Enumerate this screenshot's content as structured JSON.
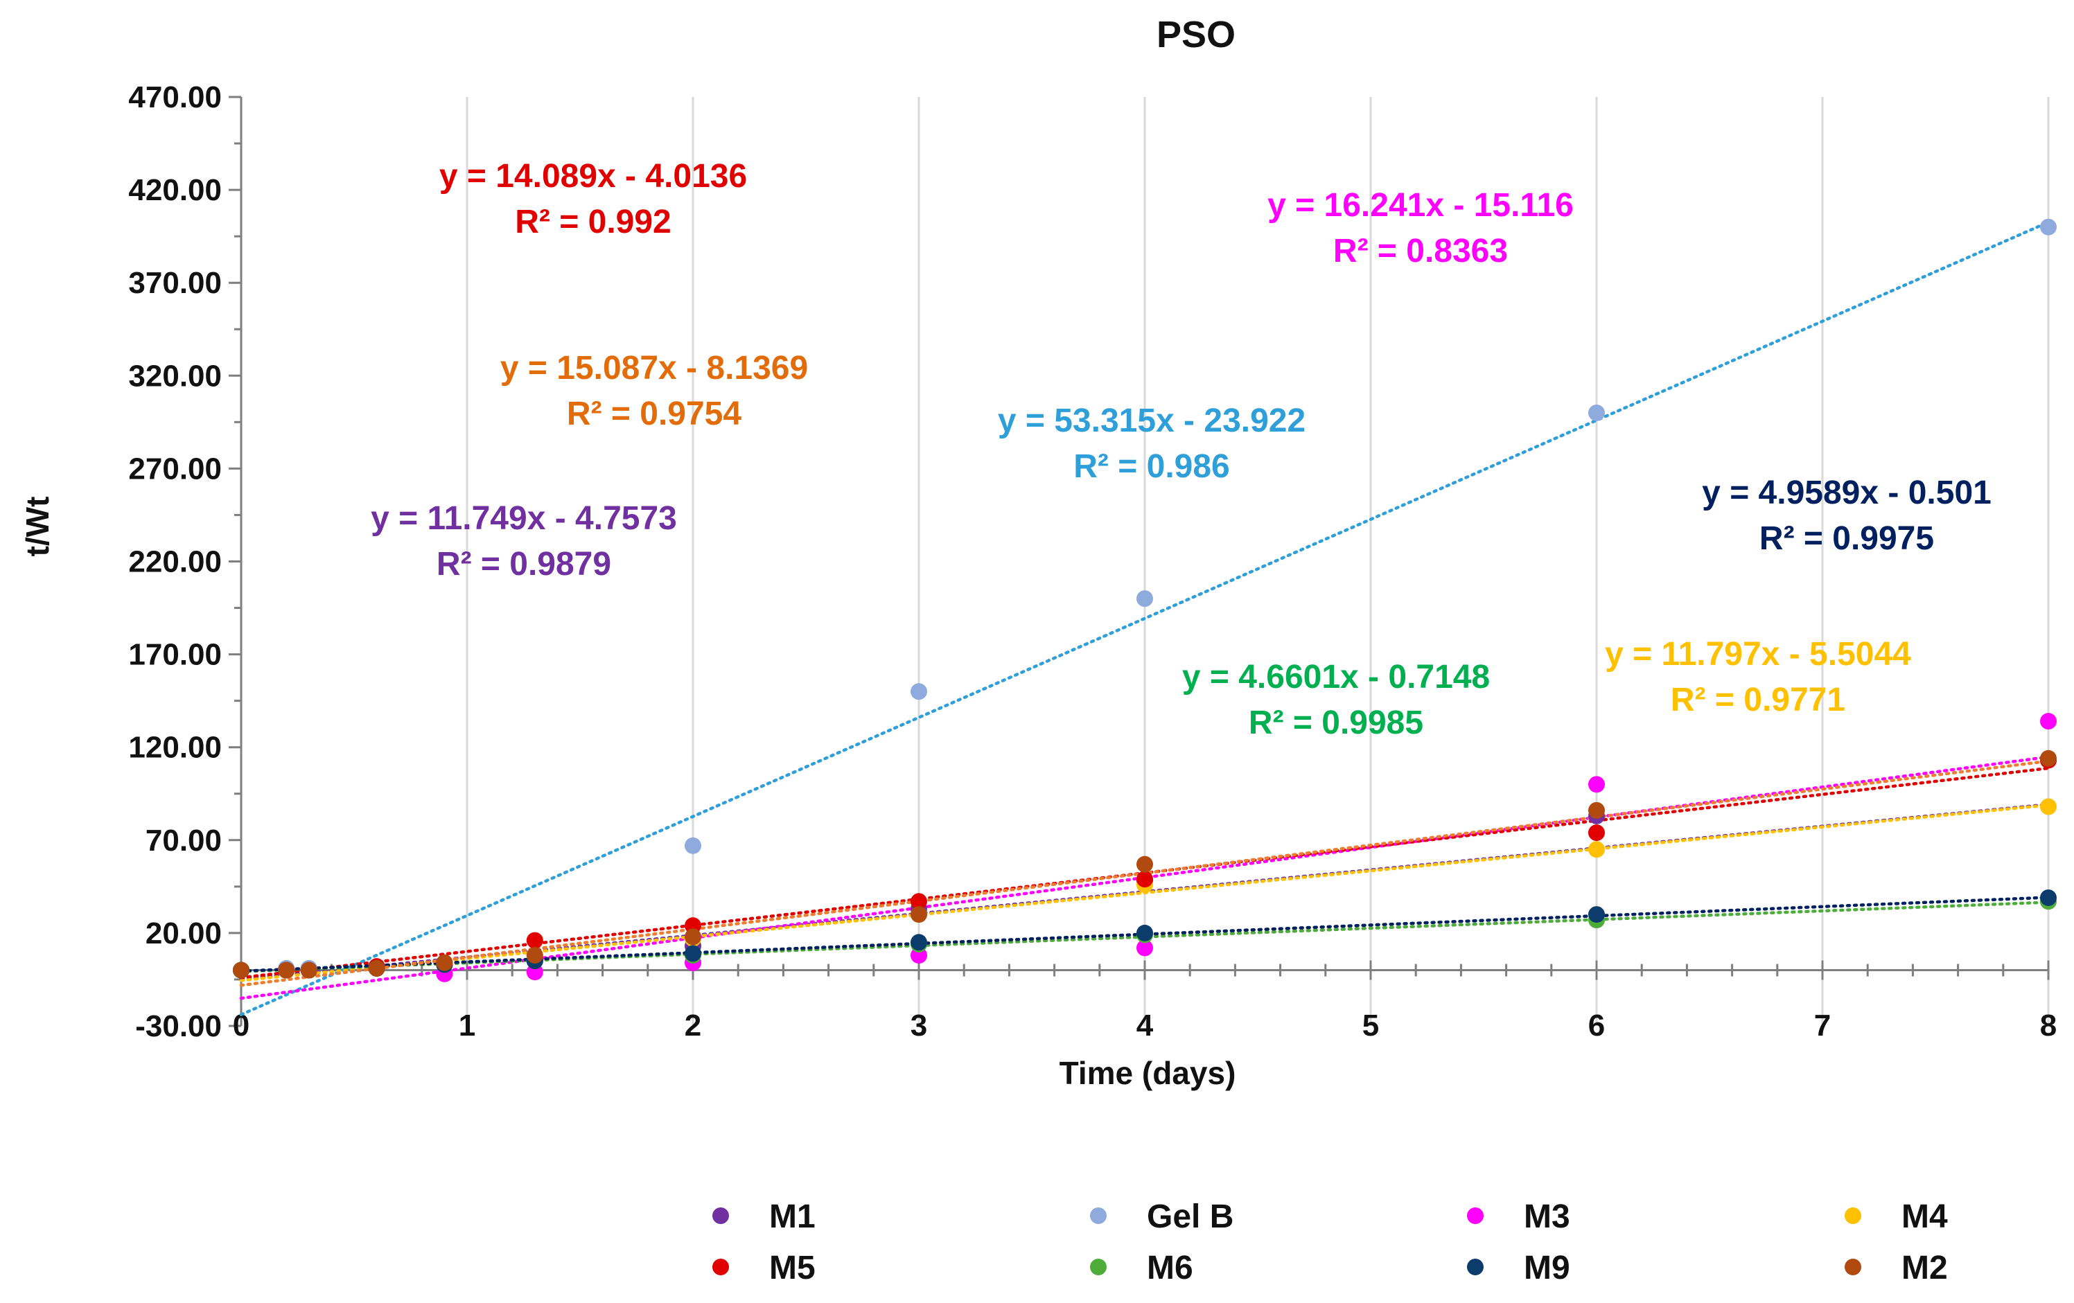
{
  "chart_data": {
    "type": "scatter",
    "title": "PSO",
    "xlabel": "Time (days)",
    "ylabel": "t/Wt",
    "xlim": [
      0,
      8
    ],
    "ylim": [
      -30,
      470
    ],
    "x_ticks": [
      "0",
      "1",
      "2",
      "3",
      "4",
      "5",
      "6",
      "7",
      "8"
    ],
    "y_ticks": [
      "-30.00",
      "20.00",
      "70.00",
      "120.00",
      "170.00",
      "220.00",
      "270.00",
      "320.00",
      "370.00",
      "420.00",
      "470.00"
    ],
    "legend_position": "bottom",
    "series": [
      {
        "name": "M1",
        "color": "#7030A0",
        "trend_color": "#7030A0",
        "x": [
          0,
          0.2,
          0.3,
          0.6,
          0.9,
          1.3,
          2,
          3,
          4,
          6,
          8
        ],
        "y": [
          0,
          0,
          0,
          1,
          3,
          5,
          13,
          33,
          48,
          83,
          113
        ],
        "equation": "y = 11.749x - 4.7573",
        "r2": "R² = 0.9879",
        "eq_color": "#7030A0"
      },
      {
        "name": "Gel B",
        "color": "#8FAADC",
        "trend_color": "#2E9FD8",
        "x": [
          0,
          0.2,
          0.3,
          0.6,
          0.9,
          1.3,
          2,
          3,
          4,
          6,
          8
        ],
        "y": [
          0,
          1,
          1,
          2,
          4,
          5,
          67,
          150,
          200,
          300,
          400
        ],
        "equation": "y = 53.315x - 23.922",
        "r2": "R² = 0.986",
        "eq_color": "#2E9FD8"
      },
      {
        "name": "M3",
        "color": "#FF00FF",
        "trend_color": "#FF00FF",
        "x": [
          0,
          0.2,
          0.3,
          0.6,
          0.9,
          1.3,
          2,
          3,
          4,
          6,
          8
        ],
        "y": [
          0,
          0,
          0,
          1,
          -2,
          -1,
          4,
          8,
          12,
          100,
          134
        ],
        "equation": "y = 16.241x - 15.116",
        "r2": "R² = 0.8363",
        "eq_color": "#FF00FF"
      },
      {
        "name": "M4",
        "color": "#FFC000",
        "trend_color": "#FFC000",
        "x": [
          0,
          0.2,
          0.3,
          0.6,
          0.9,
          1.3,
          2,
          3,
          4,
          6,
          8
        ],
        "y": [
          0,
          0,
          0,
          1,
          3,
          5,
          17,
          30,
          46,
          65,
          88
        ],
        "equation": "y = 11.797x - 5.5044",
        "r2": "R² = 0.9771",
        "eq_color": "#FFC000"
      },
      {
        "name": "M5",
        "color": "#E00000",
        "trend_color": "#E00000",
        "x": [
          0,
          0.2,
          0.3,
          0.6,
          0.9,
          1.3,
          2,
          3,
          4,
          6,
          8
        ],
        "y": [
          0,
          0,
          0,
          2,
          4,
          16,
          24,
          37,
          49,
          74,
          113
        ],
        "equation": "y = 14.089x - 4.0136",
        "r2": "R² = 0.992",
        "eq_color": "#E00000"
      },
      {
        "name": "M6",
        "color": "#4EAD3A",
        "trend_color": "#4EAD3A",
        "x": [
          0,
          0.2,
          0.3,
          0.6,
          0.9,
          1.3,
          2,
          3,
          4,
          6,
          8
        ],
        "y": [
          0,
          0,
          0,
          1,
          3,
          5,
          8,
          14,
          19,
          27,
          37
        ],
        "equation": "y = 4.6601x - 0.7148",
        "r2": "R² = 0.9985",
        "eq_color": "#00B050"
      },
      {
        "name": "M9",
        "color": "#0B3C6B",
        "trend_color": "#002060",
        "x": [
          0,
          0.2,
          0.3,
          0.6,
          0.9,
          1.3,
          2,
          3,
          4,
          6,
          8
        ],
        "y": [
          0,
          0,
          0,
          1,
          3,
          5,
          9,
          15,
          20,
          30,
          39
        ],
        "equation": "y = 4.9589x - 0.501",
        "r2": "R² = 0.9975",
        "eq_color": "#002060"
      },
      {
        "name": "M2",
        "color": "#B04A0F",
        "trend_color": "#ED7D31",
        "x": [
          0,
          0.2,
          0.3,
          0.6,
          0.9,
          1.3,
          2,
          3,
          4,
          6,
          8
        ],
        "y": [
          0,
          0,
          0,
          1,
          4,
          8,
          18,
          30,
          57,
          86,
          114
        ],
        "equation": "y = 15.087x - 8.1369",
        "r2": "R² = 0.9754",
        "eq_color": "#E36C0A"
      }
    ]
  }
}
